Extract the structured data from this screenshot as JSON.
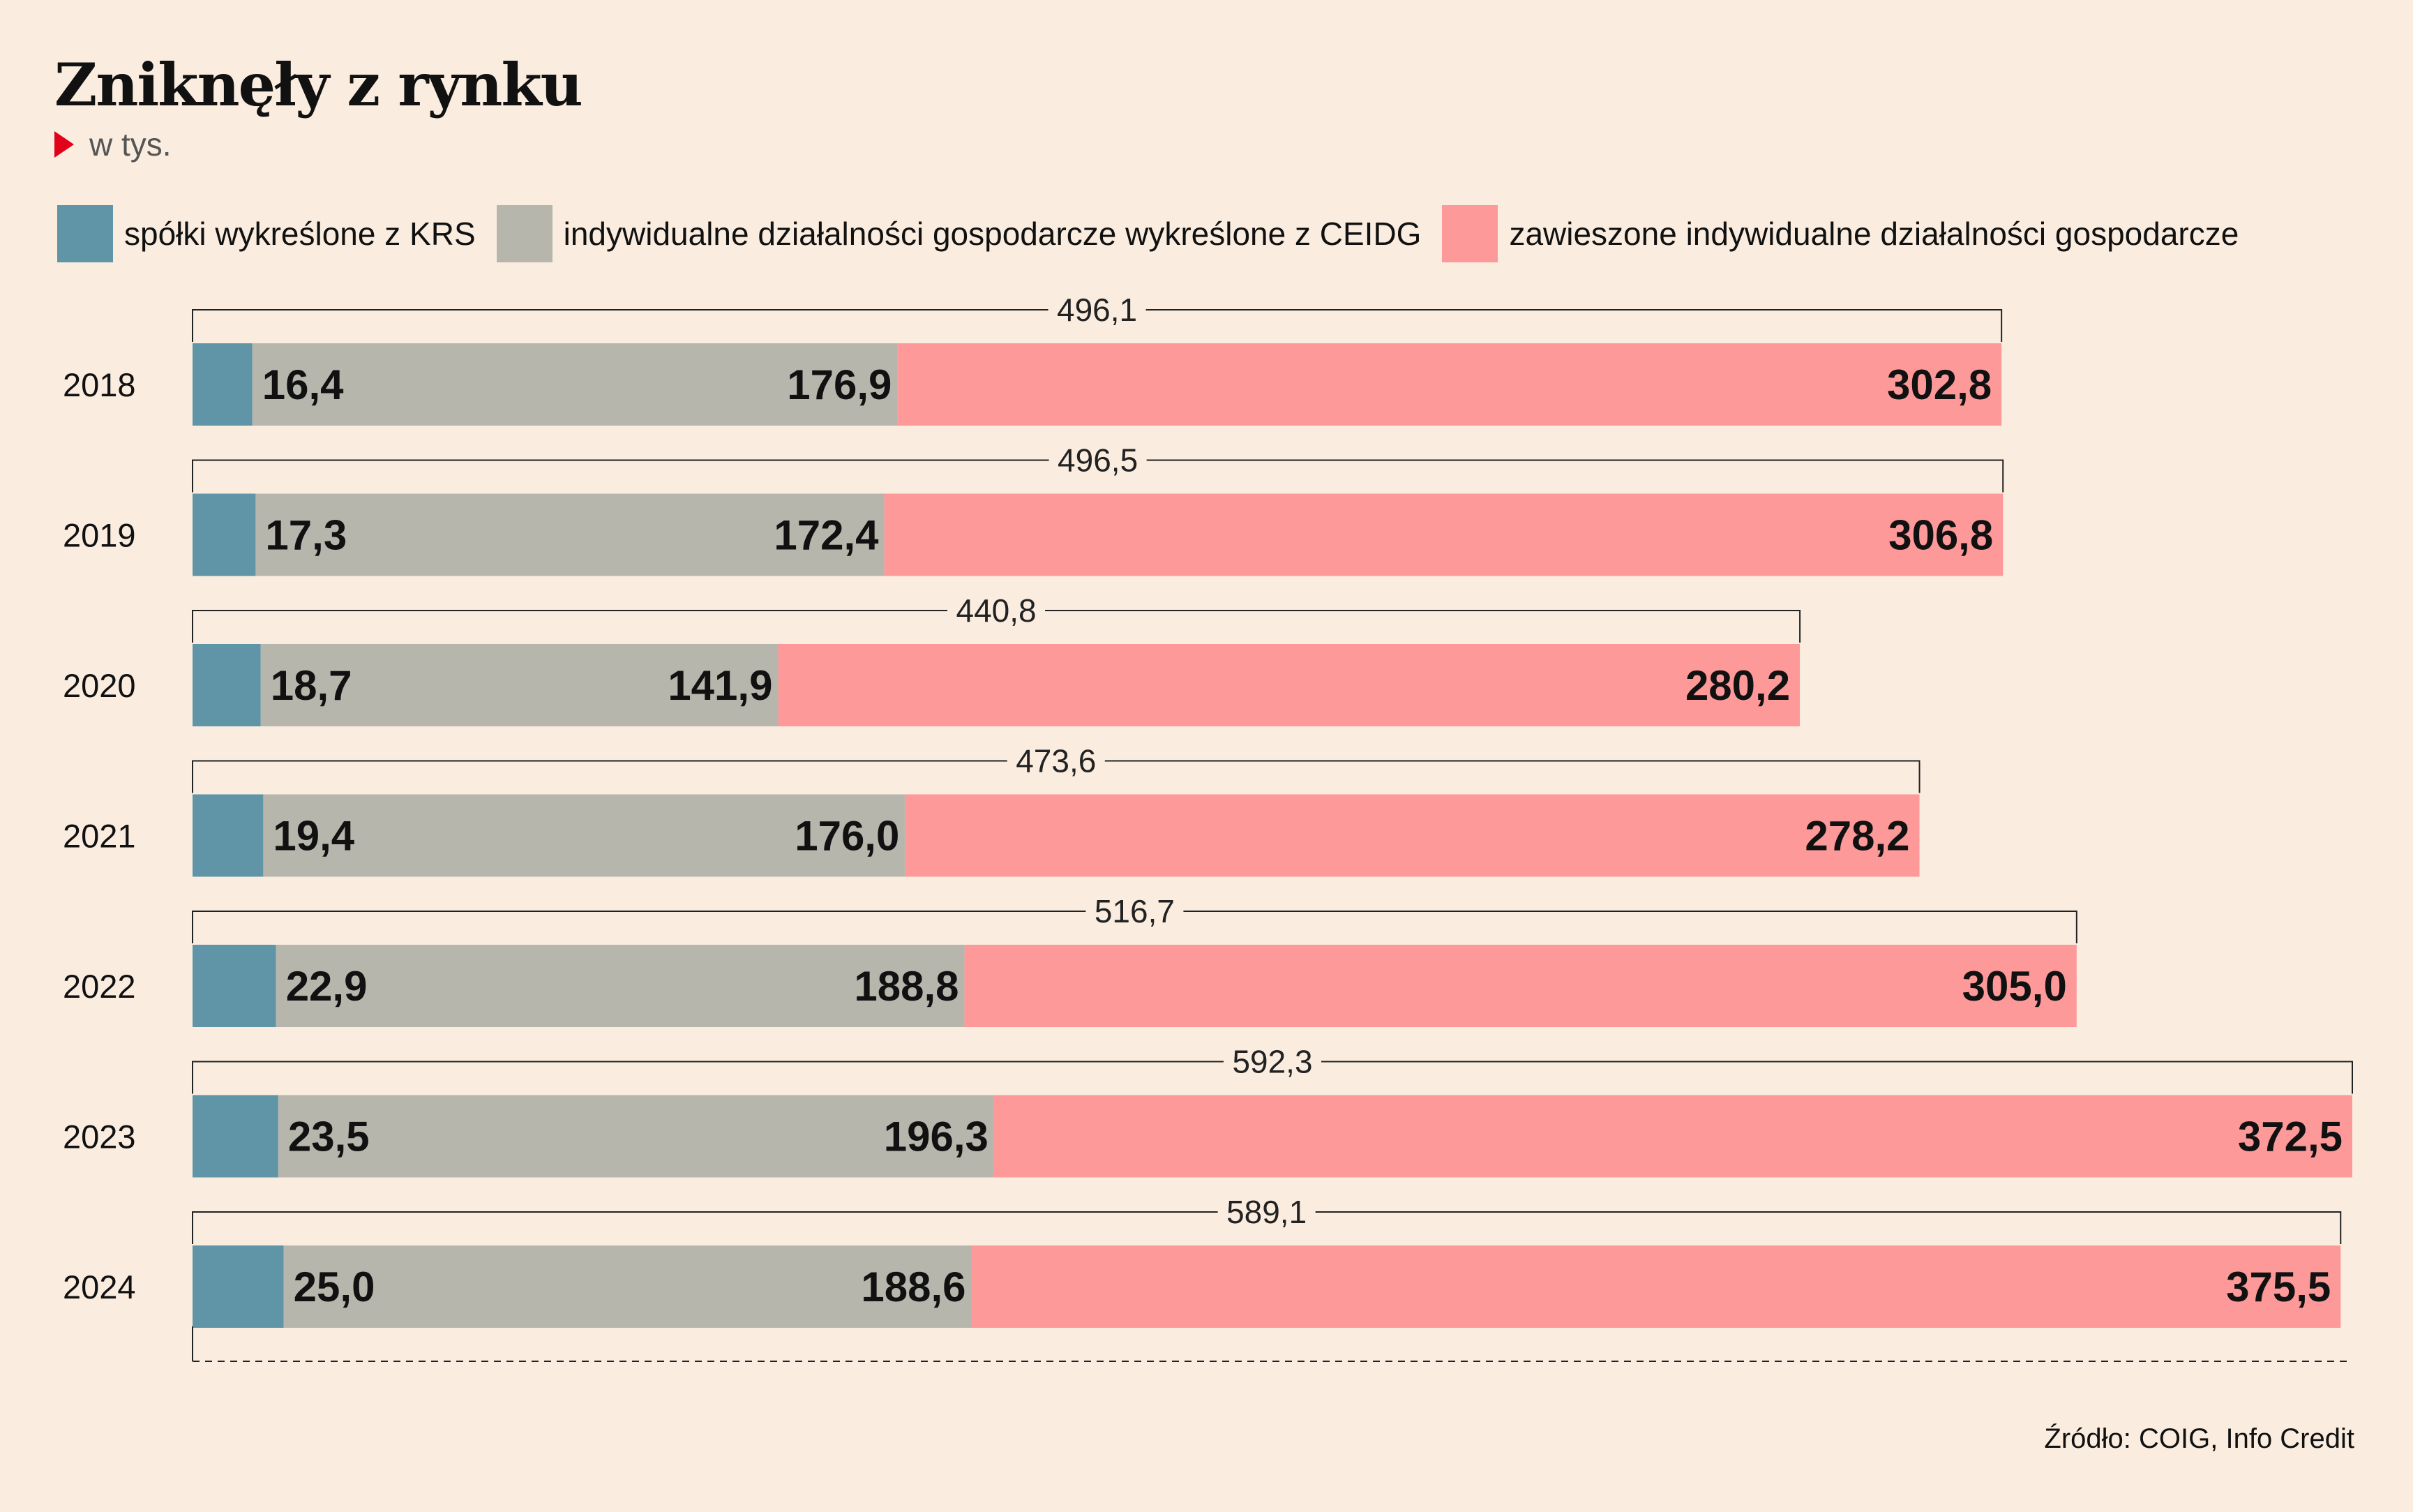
{
  "title": "Zniknęły z rynku",
  "subtitle": "w tys.",
  "source": "Źródło: COIG, Info Credit",
  "legend": [
    {
      "label": "spółki wykreślone z KRS",
      "color": "#5f95a6"
    },
    {
      "label": "indywidualne działalności gospodarcze wykreślone z CEIDG",
      "color": "#b7b6ad"
    },
    {
      "label": "zawieszone indywidualne działalności gospodarcze",
      "color": "#fd9999"
    }
  ],
  "chart_data": {
    "type": "bar",
    "orientation": "horizontal",
    "stacked": true,
    "categories": [
      "2018",
      "2019",
      "2020",
      "2021",
      "2022",
      "2023",
      "2024"
    ],
    "series": [
      {
        "name": "spółki wykreślone z KRS",
        "color": "#5f95a6",
        "values": [
          16.4,
          17.3,
          18.7,
          19.4,
          22.9,
          23.5,
          25.0
        ],
        "labels": [
          "16,4",
          "17,3",
          "18,7",
          "19,4",
          "22,9",
          "23,5",
          "25,0"
        ]
      },
      {
        "name": "indywidualne działalności gospodarcze wykreślone z CEIDG",
        "color": "#b7b6ad",
        "values": [
          176.9,
          172.4,
          141.9,
          176.0,
          188.8,
          196.3,
          188.6
        ],
        "labels": [
          "176,9",
          "172,4",
          "141,9",
          "176,0",
          "188,8",
          "196,3",
          "188,6"
        ]
      },
      {
        "name": "zawieszone indywidualne działalności gospodarcze",
        "color": "#fd9999",
        "values": [
          302.8,
          306.8,
          280.2,
          278.2,
          305.0,
          372.5,
          375.5
        ],
        "labels": [
          "302,8",
          "306,8",
          "280,2",
          "278,2",
          "305,0",
          "372,5",
          "375,5"
        ]
      }
    ],
    "totals": [
      496.1,
      496.5,
      440.8,
      473.6,
      516.7,
      592.3,
      589.1
    ],
    "total_labels": [
      "496,1",
      "496,5",
      "440,8",
      "473,6",
      "516,7",
      "592,3",
      "589,1"
    ],
    "xlim": [
      0,
      592.3
    ],
    "grid": false,
    "legend_position": "top"
  }
}
